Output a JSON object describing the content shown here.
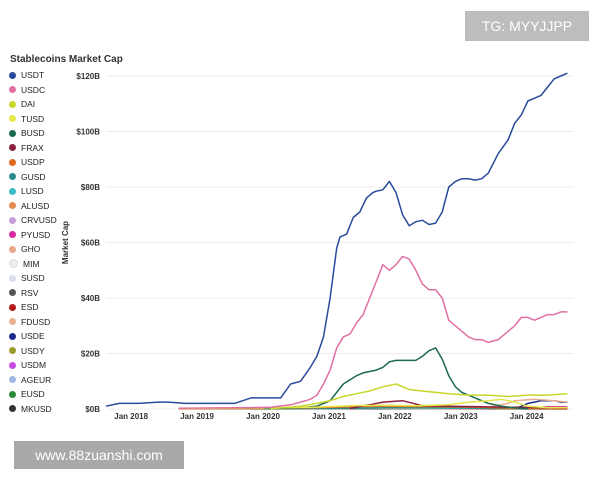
{
  "watermark_top": "TG: MYYJJPP",
  "watermark_bottom": "www.88zuanshi.com",
  "chart_data": {
    "type": "line",
    "title": "Stablecoins Market Cap",
    "xlabel": "",
    "ylabel": "Market Cap",
    "xlim": [
      2017.8,
      2024.9
    ],
    "ylim": [
      0,
      120
    ],
    "yticks": [
      0,
      20,
      40,
      60,
      80,
      100,
      120
    ],
    "ytick_labels": [
      "$0B",
      "$20B",
      "$40B",
      "$60B",
      "$80B",
      "$100B",
      "$120B"
    ],
    "xticks": [
      2018,
      2019,
      2020,
      2021,
      2022,
      2023,
      2024
    ],
    "xtick_labels": [
      "Jan 2018",
      "Jan 2019",
      "Jan 2020",
      "Jan 2021",
      "Jan 2022",
      "Jan 2023",
      "Jan 2024"
    ],
    "grid": "horizontal",
    "legend_position": "left",
    "series": [
      {
        "name": "USDT",
        "color": "#2a4a9c",
        "x": [
          2017.8,
          2018.0,
          2018.3,
          2018.6,
          2018.75,
          2019.0,
          2019.3,
          2019.5,
          2019.75,
          2020.0,
          2020.2,
          2020.3,
          2020.45,
          2020.6,
          2020.75,
          2020.9,
          2021.0,
          2021.1,
          2021.2,
          2021.3,
          2021.35,
          2021.45,
          2021.55,
          2021.65,
          2021.75,
          2021.85,
          2021.9,
          2022.0,
          2022.1,
          2022.2,
          2022.3,
          2022.4,
          2022.5,
          2022.6,
          2022.7,
          2022.8,
          2022.9,
          2023.0,
          2023.1,
          2023.2,
          2023.3,
          2023.4,
          2023.5,
          2023.6,
          2023.75,
          2023.9,
          2024.0,
          2024.1,
          2024.2,
          2024.3,
          2024.4,
          2024.5,
          2024.6,
          2024.7,
          2024.8
        ],
        "values": [
          1,
          2,
          2,
          2.5,
          2.5,
          2,
          2,
          2,
          2,
          4,
          4,
          4,
          4,
          9,
          10,
          15,
          19,
          26,
          40,
          58,
          62,
          63,
          69,
          71,
          76,
          78,
          78.5,
          79,
          82,
          78,
          70,
          66,
          67.5,
          68,
          66.5,
          67,
          71,
          80,
          82,
          83,
          83,
          82.5,
          83,
          85,
          92,
          97,
          103,
          106,
          111,
          112,
          113,
          116,
          119,
          120,
          121
        ]
      },
      {
        "name": "USDC",
        "color": "#e06fa3",
        "x": [
          2018.9,
          2019.5,
          2020.0,
          2020.3,
          2020.6,
          2020.75,
          2020.9,
          2021.0,
          2021.1,
          2021.2,
          2021.3,
          2021.4,
          2021.5,
          2021.6,
          2021.7,
          2021.8,
          2021.9,
          2022.0,
          2022.1,
          2022.2,
          2022.3,
          2022.4,
          2022.5,
          2022.6,
          2022.7,
          2022.8,
          2022.9,
          2023.0,
          2023.1,
          2023.2,
          2023.3,
          2023.4,
          2023.5,
          2023.6,
          2023.75,
          2023.9,
          2024.0,
          2024.1,
          2024.2,
          2024.3,
          2024.4,
          2024.5,
          2024.6,
          2024.7,
          2024.8
        ],
        "values": [
          0.3,
          0.4,
          0.5,
          0.6,
          1.5,
          2.5,
          3.5,
          5,
          9,
          14,
          22,
          26,
          27,
          31,
          34,
          40,
          46,
          52,
          50,
          52,
          55,
          54,
          50,
          45,
          43,
          43,
          40,
          32,
          30,
          28,
          26,
          25,
          25,
          24,
          25,
          28,
          30,
          33,
          33,
          32,
          33,
          34,
          34,
          35,
          35
        ]
      },
      {
        "name": "DAI",
        "color": "#c8d82a",
        "x": [
          2020.3,
          2020.75,
          2021.0,
          2021.2,
          2021.4,
          2021.6,
          2021.8,
          2022.0,
          2022.2,
          2022.4,
          2022.6,
          2022.8,
          2023.0,
          2023.3,
          2023.6,
          2023.9,
          2024.2,
          2024.5,
          2024.8
        ],
        "values": [
          0.1,
          1,
          2,
          3,
          4.5,
          5.5,
          6.5,
          8,
          9,
          7,
          6.5,
          6,
          5.5,
          5,
          5,
          4.5,
          5,
          5,
          5.5
        ]
      },
      {
        "name": "TUSD",
        "color": "#e4e84a",
        "x": [
          2019.0,
          2020.5,
          2021.0,
          2021.5,
          2022.0,
          2022.5,
          2023.0,
          2023.3,
          2023.6,
          2023.8,
          2024.0,
          2024.2,
          2024.5,
          2024.8
        ],
        "values": [
          0.2,
          0.5,
          0.7,
          1.2,
          1.3,
          1.2,
          1.5,
          2.5,
          3,
          3.5,
          2.5,
          1,
          0.5,
          0.5
        ]
      },
      {
        "name": "BUSD",
        "color": "#1a6a50",
        "x": [
          2020.2,
          2020.75,
          2021.0,
          2021.2,
          2021.3,
          2021.4,
          2021.5,
          2021.6,
          2021.7,
          2021.8,
          2021.9,
          2022.0,
          2022.1,
          2022.2,
          2022.3,
          2022.4,
          2022.5,
          2022.6,
          2022.7,
          2022.8,
          2022.9,
          2023.0,
          2023.1,
          2023.2,
          2023.4,
          2023.6,
          2023.8,
          2024.0,
          2024.2
        ],
        "values": [
          0.1,
          0.5,
          1,
          3,
          6,
          9,
          10.5,
          12,
          13,
          13.5,
          14,
          15,
          17,
          17.5,
          17.5,
          17.5,
          17.5,
          19,
          21,
          22,
          18,
          12,
          8,
          6,
          4,
          2,
          1,
          0.4,
          0.1
        ]
      },
      {
        "name": "FRAX",
        "color": "#8a2040",
        "x": [
          2021.5,
          2021.8,
          2022.0,
          2022.3,
          2022.6,
          2023.0,
          2023.5,
          2024.0,
          2024.8
        ],
        "values": [
          0.2,
          1.5,
          2.5,
          3,
          1.2,
          1,
          0.8,
          0.6,
          0.4
        ]
      },
      {
        "name": "USDP",
        "color": "#e06a1a",
        "x": [
          2018.9,
          2020.5,
          2021.0,
          2021.5,
          2022.0,
          2022.5,
          2023.0,
          2023.5,
          2024.0,
          2024.8
        ],
        "values": [
          0.1,
          0.2,
          0.5,
          0.8,
          1,
          0.9,
          0.8,
          0.6,
          0.3,
          0.1
        ]
      },
      {
        "name": "GUSD",
        "color": "#2a8a8a",
        "x": [
          2018.9,
          2020.5,
          2021.5,
          2022.0,
          2022.5,
          2023.0,
          2024.0,
          2024.8
        ],
        "values": [
          0.1,
          0.1,
          0.2,
          0.4,
          0.6,
          0.5,
          0.2,
          0.1
        ]
      },
      {
        "name": "LUSD",
        "color": "#3abcc0",
        "x": [
          2021.3,
          2022.0,
          2023.0,
          2024.0,
          2024.8
        ],
        "values": [
          0.3,
          0.5,
          0.3,
          0.2,
          0.1
        ]
      },
      {
        "name": "ALUSD",
        "color": "#e48a50",
        "x": [
          2021.3,
          2022.0,
          2022.5,
          2023.5,
          2024.8
        ],
        "values": [
          0.1,
          0.4,
          0.2,
          0.1,
          0.05
        ]
      },
      {
        "name": "CRVUSD",
        "color": "#c8a0d8",
        "x": [
          2023.4,
          2024.0,
          2024.8
        ],
        "values": [
          0.05,
          0.1,
          0.1
        ]
      },
      {
        "name": "PYUSD",
        "color": "#d82aa0",
        "x": [
          2023.6,
          2024.2,
          2024.5,
          2024.8
        ],
        "values": [
          0.05,
          0.2,
          0.8,
          0.8
        ]
      },
      {
        "name": "GHO",
        "color": "#e8a888",
        "x": [
          2023.5,
          2024.0,
          2024.8
        ],
        "values": [
          0.02,
          0.05,
          0.1
        ]
      },
      {
        "name": "MIM",
        "color": "#eeeeee",
        "x": [
          2021.5,
          2022.0,
          2022.5,
          2023.0,
          2024.8
        ],
        "values": [
          0.3,
          2,
          0.5,
          0.2,
          0.1
        ]
      },
      {
        "name": "SUSD",
        "color": "#d8dcec",
        "x": [
          2019.5,
          2021.0,
          2022.0,
          2023.0,
          2024.8
        ],
        "values": [
          0.05,
          0.2,
          0.3,
          0.1,
          0.05
        ]
      },
      {
        "name": "RSV",
        "color": "#555555",
        "x": [
          2020.0,
          2021.0,
          2022.0,
          2023.0,
          2024.8
        ],
        "values": [
          0.02,
          0.1,
          0.1,
          0.05,
          0.02
        ]
      },
      {
        "name": "ESD",
        "color": "#b01a1a",
        "x": [
          2020.7,
          2021.0,
          2021.3,
          2021.6
        ],
        "values": [
          0.1,
          0.3,
          0.1,
          0.02
        ]
      },
      {
        "name": "FDUSD",
        "color": "#e8b090",
        "x": [
          2023.5,
          2023.9,
          2024.0,
          2024.3,
          2024.6,
          2024.8
        ],
        "values": [
          0.2,
          2,
          3,
          3.5,
          3,
          2.5
        ]
      },
      {
        "name": "USDE",
        "color": "#1a2a8a",
        "x": [
          2024.0,
          2024.1,
          2024.2,
          2024.3,
          2024.4,
          2024.5,
          2024.6,
          2024.7,
          2024.8
        ],
        "values": [
          0.2,
          1,
          2,
          2.5,
          3,
          3,
          3,
          2.5,
          2.5
        ]
      },
      {
        "name": "USDY",
        "color": "#9a9a2a",
        "x": [
          2023.8,
          2024.2,
          2024.8
        ],
        "values": [
          0.05,
          0.2,
          0.4
        ]
      },
      {
        "name": "USDM",
        "color": "#c84ae0",
        "x": [
          2024.0,
          2024.5,
          2024.8
        ],
        "values": [
          0.02,
          0.1,
          0.1
        ]
      },
      {
        "name": "AGEUR",
        "color": "#a0b8e8",
        "x": [
          2021.8,
          2022.5,
          2023.5,
          2024.8
        ],
        "values": [
          0.05,
          0.2,
          0.1,
          0.05
        ]
      },
      {
        "name": "EUSD",
        "color": "#2a8a3a",
        "x": [
          2023.5,
          2024.0,
          2024.5,
          2024.8
        ],
        "values": [
          0.05,
          0.2,
          0.1,
          0.1
        ]
      },
      {
        "name": "MKUSD",
        "color": "#333333",
        "x": [
          2023.6,
          2024.0,
          2024.8
        ],
        "values": [
          0.02,
          0.1,
          0.05
        ]
      }
    ]
  }
}
